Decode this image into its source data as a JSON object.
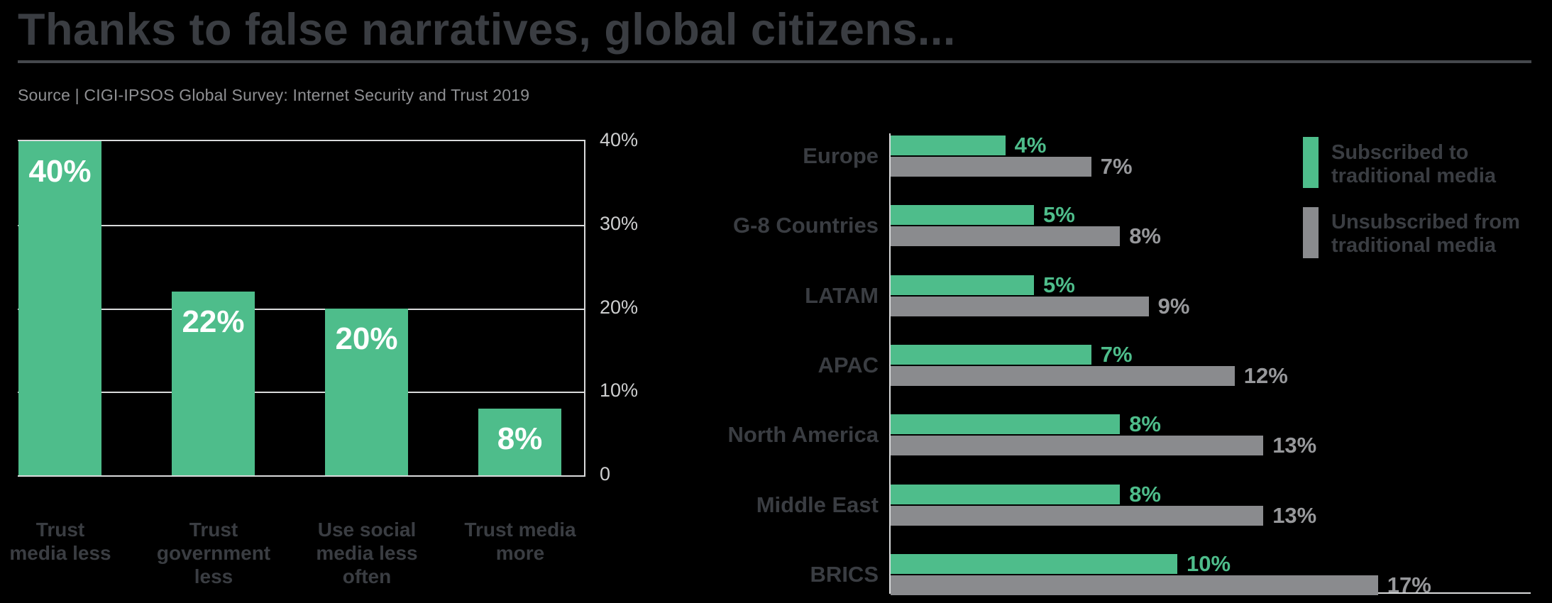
{
  "title": "Thanks to false narratives, global citizens...",
  "source": "Source | CIGI-IPSOS Global Survey: Internet Security and Trust 2019",
  "colors": {
    "background": "#000000",
    "accent_green": "#4EBD8B",
    "bar_gray": "#8A8B8E",
    "dark_text": "#3A3D42",
    "tick_text": "#CDCECF",
    "axis_line": "#D9DADB",
    "source_text": "#8F9093",
    "bar_value_white": "#FFFFFF",
    "gray_value_text": "#97989B"
  },
  "chart_data": [
    {
      "type": "bar",
      "orientation": "vertical",
      "title": "",
      "categories": [
        "Trust media less",
        "Trust government less",
        "Use social media less often",
        "Trust media more"
      ],
      "categories_lines": [
        [
          "Trust",
          "media less"
        ],
        [
          "Trust",
          "government",
          "less"
        ],
        [
          "Use social",
          "media less",
          "often"
        ],
        [
          "Trust media",
          "more"
        ]
      ],
      "values": [
        40,
        22,
        20,
        8
      ],
      "value_labels": [
        "40%",
        "22%",
        "20%",
        "8%"
      ],
      "ylim": [
        0,
        40
      ],
      "yticks": [
        "40%",
        "30%",
        "20%",
        "10%",
        "0"
      ],
      "grid": true,
      "bar_color": "#4EBD8B",
      "value_label_color": "#FFFFFF"
    },
    {
      "type": "bar",
      "orientation": "horizontal",
      "title": "",
      "categories": [
        "Europe",
        "G-8 Countries",
        "LATAM",
        "APAC",
        "North America",
        "Middle East",
        "BRICS"
      ],
      "series": [
        {
          "name": "Subscribed to traditional media",
          "values": [
            4,
            5,
            5,
            7,
            8,
            8,
            10
          ],
          "value_labels": [
            "4%",
            "5%",
            "5%",
            "7%",
            "8%",
            "8%",
            "10%"
          ],
          "color": "#4EBD8B",
          "value_label_color": "#4EBD8B"
        },
        {
          "name": "Unsubscribed from traditional media",
          "values": [
            7,
            8,
            9,
            12,
            13,
            13,
            17
          ],
          "value_labels": [
            "7%",
            "8%",
            "9%",
            "12%",
            "13%",
            "13%",
            "17%"
          ],
          "color": "#8A8B8E",
          "value_label_color": "#97989B"
        }
      ],
      "xlim": [
        0,
        22
      ],
      "grid": false,
      "legend_position": "right"
    }
  ],
  "legend": {
    "items": [
      {
        "lines": [
          "Subscribed to",
          "traditional media"
        ],
        "color": "#4EBD8B"
      },
      {
        "lines": [
          "Unsubscribed from",
          "traditional media"
        ],
        "color": "#8A8B8E"
      }
    ]
  }
}
